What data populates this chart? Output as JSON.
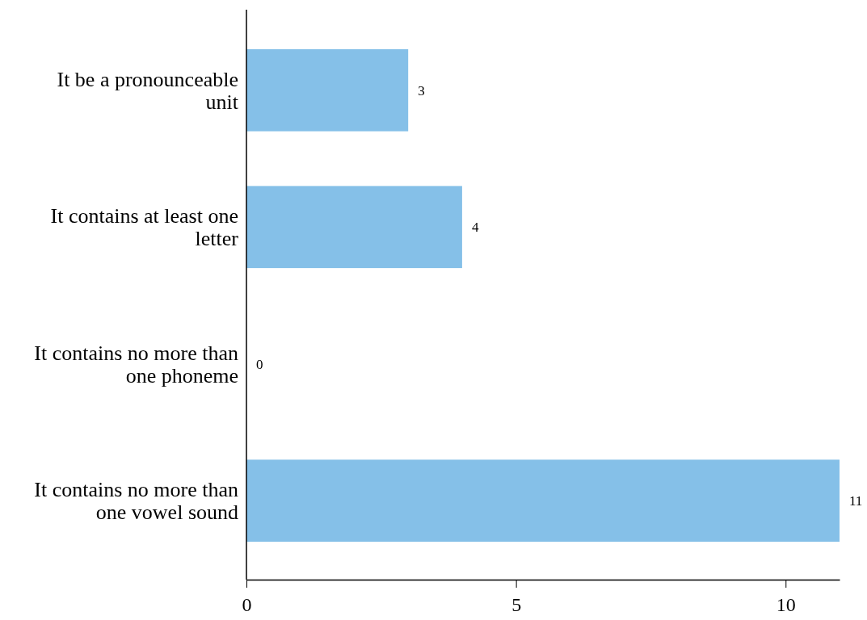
{
  "chart_data": {
    "type": "bar",
    "orientation": "horizontal",
    "categories": [
      "It be a pronounceable unit",
      "It contains at least one letter",
      "It contains no more than one phoneme",
      "It contains no more than one vowel sound"
    ],
    "values": [
      3,
      4,
      0,
      11
    ],
    "color": "#85c0e8",
    "data_labels": true,
    "xlim": [
      0,
      11
    ],
    "xticks": [
      0,
      5,
      10
    ],
    "grid": false
  }
}
